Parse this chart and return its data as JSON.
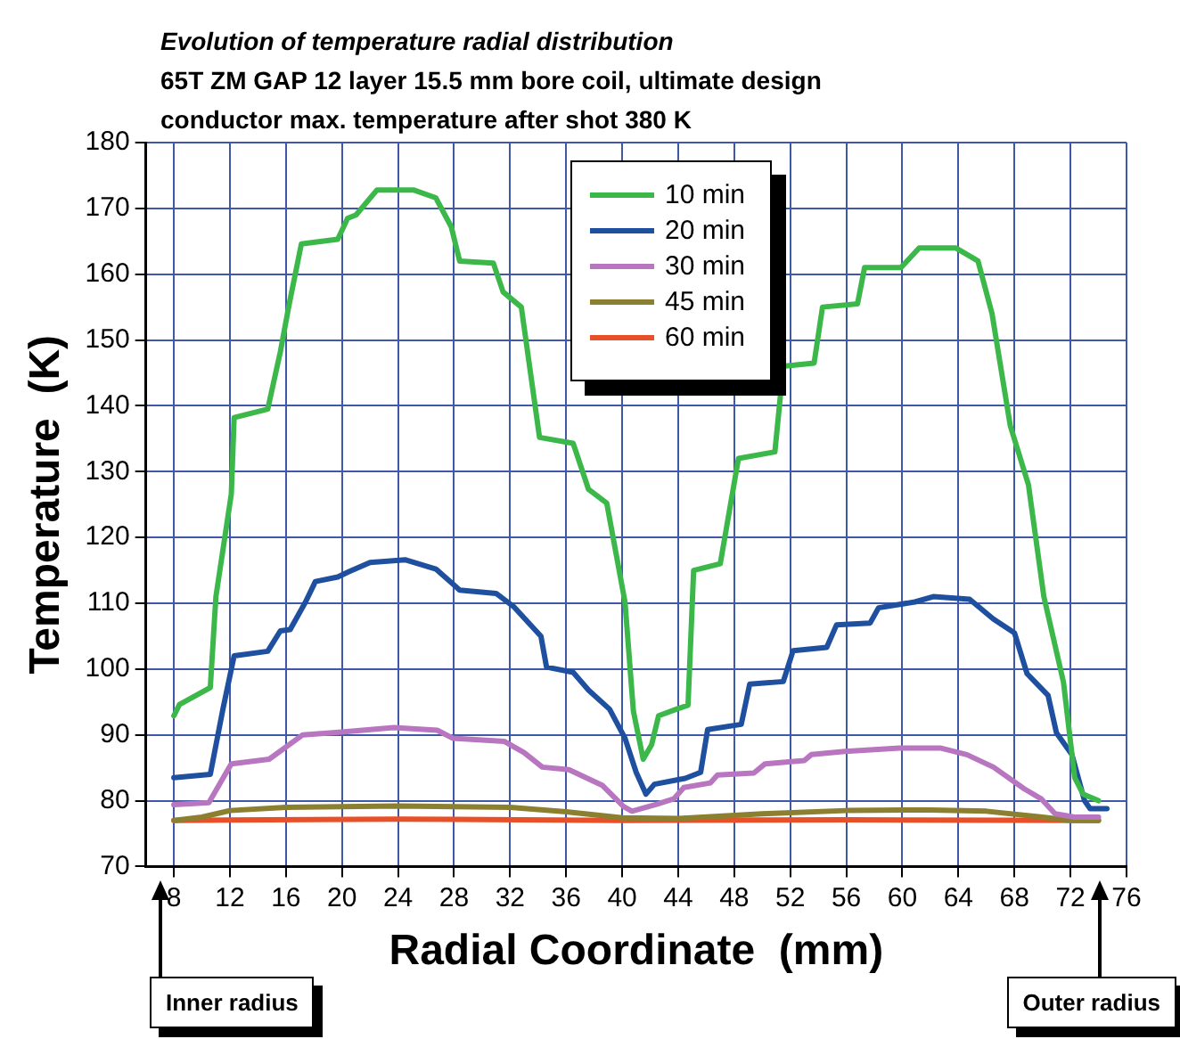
{
  "chart_data": {
    "type": "line",
    "title": "Evolution of temperature radial distribution",
    "subtitle": "65T ZM GAP 12 layer 15.5 mm  bore coil, ultimate design",
    "xlabel": "Radial Coordinate  (mm)",
    "ylabel": "Temperature  (K)",
    "annotations": [
      "conductor max. temperature after shot 380 K",
      "Inner radius",
      "Outer radius"
    ],
    "xlim": [
      6,
      76
    ],
    "xticks": [
      8,
      12,
      16,
      20,
      24,
      28,
      32,
      36,
      40,
      44,
      48,
      52,
      56,
      60,
      64,
      68,
      72,
      76
    ],
    "ylim": [
      70,
      180
    ],
    "yticks": [
      70,
      80,
      90,
      100,
      110,
      120,
      130,
      140,
      150,
      160,
      170,
      180
    ],
    "grid": true,
    "legend": "top",
    "marker": "none",
    "line_style": "solid",
    "series": [
      {
        "name": "10 min",
        "color": "#3cb84a",
        "x": [
          8,
          8.4,
          10.6,
          11,
          12.1,
          12.3,
          14.7,
          15.6,
          16.2,
          17.1,
          19.7,
          20.4,
          21,
          22.5,
          25.1,
          26.7,
          27.8,
          28.4,
          30.8,
          31.5,
          32.8,
          34.1,
          36.5,
          37.6,
          38.9,
          40.2,
          40.8,
          41.5,
          42.1,
          42.6,
          44,
          44.7,
          45.1,
          47,
          48.3,
          50.9,
          51.5,
          53.7,
          54.3,
          56.8,
          57.3,
          59.9,
          61.2,
          63.8,
          65.4,
          66.4,
          67.7,
          69,
          70.1,
          71.5,
          72.3,
          72.9,
          74
        ],
        "values": [
          92.9,
          94.6,
          97.2,
          111,
          126.6,
          138.2,
          139.5,
          148.2,
          155.1,
          164.6,
          165.3,
          168.5,
          169,
          172.8,
          172.8,
          171.6,
          167.2,
          162,
          161.7,
          157.3,
          155,
          135.2,
          134.3,
          127.3,
          125.2,
          110.2,
          93.6,
          86.3,
          88.5,
          92.9,
          94,
          94.5,
          115,
          116,
          132,
          133,
          146,
          146.5,
          155,
          155.5,
          161,
          161,
          164,
          164,
          162,
          154,
          137,
          128,
          111,
          98,
          83.5,
          81,
          80
        ]
      },
      {
        "name": "20 min",
        "color": "#1f4f9f",
        "x": [
          8,
          10.6,
          11.5,
          12.3,
          14.7,
          15.6,
          16.3,
          17.4,
          18.1,
          19.7,
          20.5,
          22,
          24.5,
          26.7,
          28.4,
          31,
          32.3,
          34.2,
          34.6,
          36.5,
          37.6,
          39.1,
          40.2,
          41,
          41.7,
          42.3,
          44.5,
          45.6,
          46.1,
          48.5,
          49.1,
          51.5,
          52.2,
          54.6,
          55.3,
          57.7,
          58.3,
          60.9,
          62.2,
          64.8,
          66.5,
          68,
          68.9,
          70.4,
          71,
          72.1,
          73,
          73.4,
          74.6
        ],
        "values": [
          83.5,
          84,
          93.9,
          102,
          102.7,
          105.8,
          106,
          110.2,
          113.3,
          114,
          114.8,
          116.2,
          116.6,
          115.2,
          112,
          111.5,
          109.4,
          105,
          100.3,
          99.5,
          96.8,
          93.9,
          89.5,
          84.3,
          81,
          82.5,
          83.4,
          84.3,
          90.8,
          91.6,
          97.7,
          98.1,
          102.8,
          103.3,
          106.7,
          107,
          109.3,
          110.2,
          111,
          110.6,
          107.6,
          105.5,
          99.3,
          96,
          90.3,
          87,
          80,
          78.8,
          78.8
        ]
      },
      {
        "name": "30 min",
        "color": "#b875c0",
        "x": [
          8,
          10.5,
          12.1,
          14.8,
          17.2,
          19.8,
          23.7,
          26.8,
          27.9,
          31.6,
          33,
          34.3,
          36.2,
          38.6,
          40.1,
          40.7,
          42.4,
          43.7,
          44.4,
          46.3,
          46.8,
          49.4,
          50.2,
          53,
          53.5,
          55.9,
          59.8,
          62.7,
          64.6,
          66.5,
          68.7,
          69.9,
          70.9,
          72.3,
          74
        ],
        "values": [
          79.4,
          79.7,
          85.6,
          86.3,
          90,
          90.4,
          91.1,
          90.7,
          89.5,
          89,
          87.3,
          85.1,
          84.7,
          82.3,
          79.1,
          78.4,
          79.4,
          80.3,
          82,
          82.7,
          83.9,
          84.2,
          85.6,
          86.1,
          87,
          87.5,
          88,
          88,
          87,
          85.1,
          81.8,
          80.3,
          78,
          77.5,
          77.5
        ]
      },
      {
        "name": "45 min",
        "color": "#8a8030",
        "x": [
          8,
          10,
          12,
          16,
          24,
          32,
          36,
          40,
          44,
          50,
          56,
          62,
          66,
          70,
          72,
          74
        ],
        "values": [
          77,
          77.5,
          78.5,
          79,
          79.2,
          79,
          78.3,
          77.4,
          77.3,
          78,
          78.5,
          78.6,
          78.4,
          77.5,
          77,
          77
        ]
      },
      {
        "name": "60 min",
        "color": "#e8502a",
        "x": [
          8,
          24,
          40,
          56,
          74
        ],
        "values": [
          77,
          77.2,
          77,
          77.1,
          77
        ]
      }
    ]
  }
}
